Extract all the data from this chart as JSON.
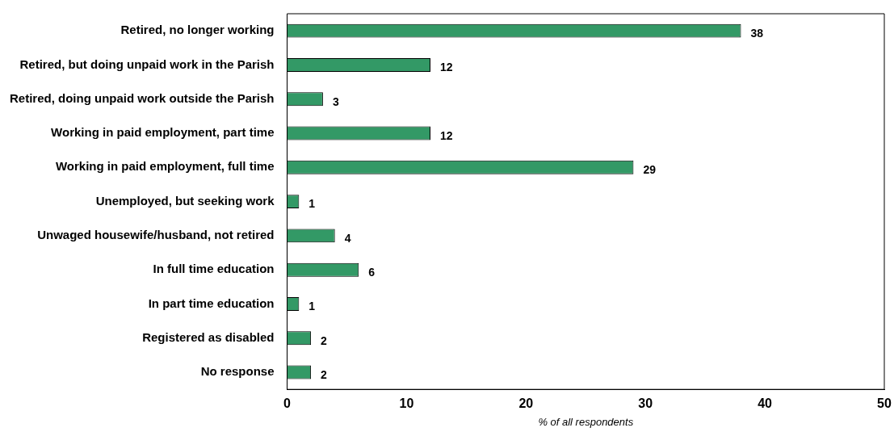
{
  "chart_data": {
    "type": "bar",
    "orientation": "horizontal",
    "categories": [
      "Retired, no longer working",
      "Retired, but doing unpaid work in the Parish",
      "Retired, doing unpaid work outside the Parish",
      "Working in paid employment, part time",
      "Working in paid employment, full time",
      "Unemployed, but seeking work",
      "Unwaged housewife/husband, not retired",
      "In full time education",
      "In part time education",
      "Registered as disabled",
      "No response"
    ],
    "values": [
      38,
      12,
      3,
      12,
      29,
      1,
      4,
      6,
      1,
      2,
      2
    ],
    "color": "#339966",
    "xlim": [
      0,
      50
    ],
    "xticks": [
      0,
      10,
      20,
      30,
      40,
      50
    ],
    "xlabel": "% of all respondents",
    "data_labels": true
  }
}
